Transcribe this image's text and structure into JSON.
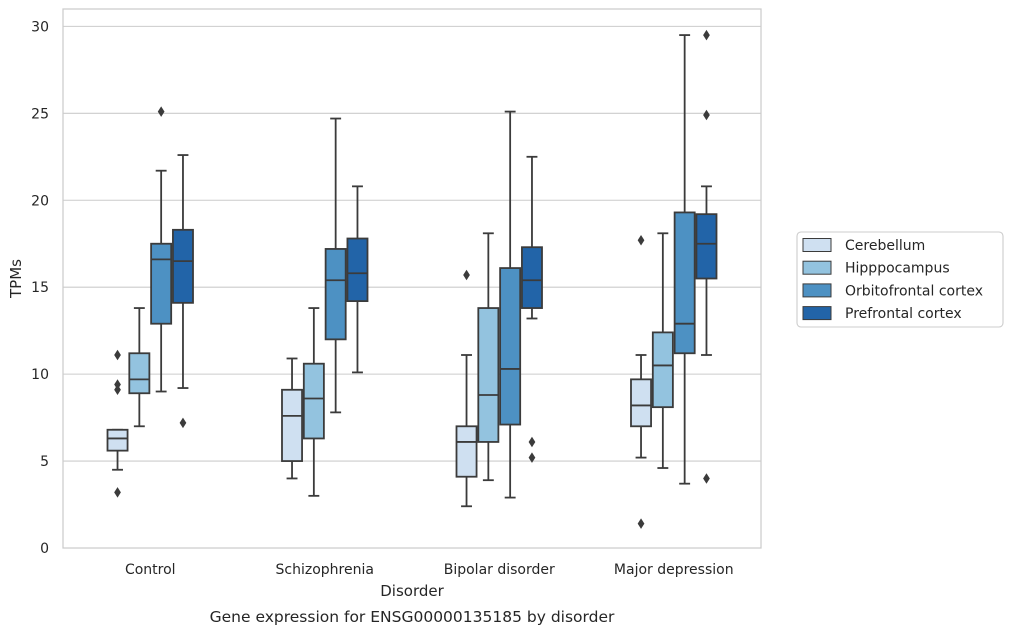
{
  "chart_data": {
    "type": "boxplot",
    "xlabel": "Disorder",
    "ylabel": "TPMs",
    "caption": "Gene expression for ENSG00000135185 by disorder",
    "categories": [
      "Control",
      "Schizophrenia",
      "Bipolar disorder",
      "Major depression"
    ],
    "ylim": [
      0,
      31
    ],
    "yticks": [
      0,
      5,
      10,
      15,
      20,
      25,
      30
    ],
    "grid": "horizontal",
    "legend_position": "right",
    "series": [
      {
        "name": "Cerebellum",
        "color": "#cfe0f1",
        "boxes": [
          {
            "whislo": 4.5,
            "q1": 5.6,
            "med": 6.3,
            "q3": 6.8,
            "whishi": 6.8,
            "fliers": [
              3.2,
              9.1,
              9.4,
              11.1
            ]
          },
          {
            "whislo": 4.0,
            "q1": 5.0,
            "med": 7.6,
            "q3": 9.1,
            "whishi": 10.9,
            "fliers": []
          },
          {
            "whislo": 2.4,
            "q1": 4.1,
            "med": 6.1,
            "q3": 7.0,
            "whishi": 11.1,
            "fliers": [
              15.7
            ]
          },
          {
            "whislo": 5.2,
            "q1": 7.0,
            "med": 8.2,
            "q3": 9.7,
            "whishi": 11.1,
            "fliers": [
              1.4,
              17.7
            ]
          }
        ]
      },
      {
        "name": "Hipppocampus",
        "color": "#93c3df",
        "boxes": [
          {
            "whislo": 7.0,
            "q1": 8.9,
            "med": 9.7,
            "q3": 11.2,
            "whishi": 13.8,
            "fliers": []
          },
          {
            "whislo": 3.0,
            "q1": 6.3,
            "med": 8.6,
            "q3": 10.6,
            "whishi": 13.8,
            "fliers": []
          },
          {
            "whislo": 3.9,
            "q1": 6.1,
            "med": 8.8,
            "q3": 13.8,
            "whishi": 18.1,
            "fliers": []
          },
          {
            "whislo": 4.6,
            "q1": 8.1,
            "med": 10.5,
            "q3": 12.4,
            "whishi": 18.1,
            "fliers": []
          }
        ]
      },
      {
        "name": "Orbitofrontal cortex",
        "color": "#4d91c3",
        "boxes": [
          {
            "whislo": 9.0,
            "q1": 12.9,
            "med": 16.6,
            "q3": 17.5,
            "whishi": 21.7,
            "fliers": [
              25.1
            ]
          },
          {
            "whislo": 7.8,
            "q1": 12.0,
            "med": 15.4,
            "q3": 17.2,
            "whishi": 24.7,
            "fliers": []
          },
          {
            "whislo": 2.9,
            "q1": 7.1,
            "med": 10.3,
            "q3": 16.1,
            "whishi": 25.1,
            "fliers": []
          },
          {
            "whislo": 3.7,
            "q1": 11.2,
            "med": 12.9,
            "q3": 19.3,
            "whishi": 29.5,
            "fliers": []
          }
        ]
      },
      {
        "name": "Prefrontal cortex",
        "color": "#2264a8",
        "boxes": [
          {
            "whislo": 9.2,
            "q1": 14.1,
            "med": 16.5,
            "q3": 18.3,
            "whishi": 22.6,
            "fliers": [
              7.2
            ]
          },
          {
            "whislo": 10.1,
            "q1": 14.2,
            "med": 15.8,
            "q3": 17.8,
            "whishi": 20.8,
            "fliers": []
          },
          {
            "whislo": 13.2,
            "q1": 13.8,
            "med": 15.4,
            "q3": 17.3,
            "whishi": 22.5,
            "fliers": [
              5.2,
              6.1
            ]
          },
          {
            "whislo": 11.1,
            "q1": 15.5,
            "med": 17.5,
            "q3": 19.2,
            "whishi": 20.8,
            "fliers": [
              4.0,
              24.9,
              29.5
            ]
          }
        ]
      }
    ]
  }
}
